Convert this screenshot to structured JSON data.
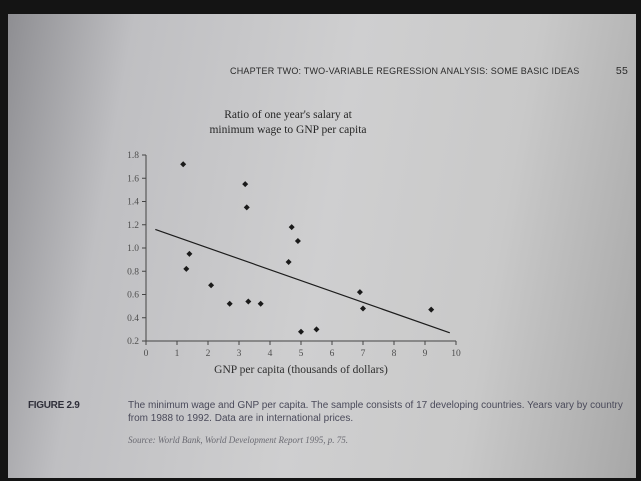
{
  "header": {
    "running_title": "CHAPTER TWO:  TWO-VARIABLE REGRESSION ANALYSIS: SOME BASIC IDEAS",
    "page_number": "55"
  },
  "chart_data": {
    "type": "scatter",
    "title": "Ratio of one year's salary at minimum wage to GNP per capita",
    "title_lines": [
      "Ratio of one year's salary at",
      "minimum wage to GNP per capita"
    ],
    "xlabel": "GNP per capita (thousands of dollars)",
    "ylabel": "",
    "xlim": [
      0,
      10
    ],
    "ylim": [
      0.2,
      1.8
    ],
    "xticks": [
      "0",
      "1",
      "2",
      "3",
      "4",
      "5",
      "6",
      "7",
      "8",
      "9",
      "10"
    ],
    "yticks": [
      "0.2",
      "0.4",
      "0.6",
      "0.8",
      "1.0",
      "1.2",
      "1.4",
      "1.6",
      "1.8"
    ],
    "points": [
      {
        "x": 1.2,
        "y": 1.72
      },
      {
        "x": 1.4,
        "y": 0.95
      },
      {
        "x": 1.3,
        "y": 0.82
      },
      {
        "x": 2.1,
        "y": 0.68
      },
      {
        "x": 2.7,
        "y": 0.52
      },
      {
        "x": 3.2,
        "y": 1.55
      },
      {
        "x": 3.25,
        "y": 1.35
      },
      {
        "x": 3.3,
        "y": 0.54
      },
      {
        "x": 3.7,
        "y": 0.52
      },
      {
        "x": 4.7,
        "y": 1.18
      },
      {
        "x": 4.9,
        "y": 1.06
      },
      {
        "x": 4.6,
        "y": 0.88
      },
      {
        "x": 5.0,
        "y": 0.28
      },
      {
        "x": 5.5,
        "y": 0.3
      },
      {
        "x": 6.9,
        "y": 0.62
      },
      {
        "x": 7.0,
        "y": 0.48
      },
      {
        "x": 9.2,
        "y": 0.47
      }
    ],
    "regression_line": {
      "x": [
        0.3,
        9.8
      ],
      "y": [
        1.16,
        0.27
      ]
    },
    "grid": false,
    "colors": {
      "points": "#1a1a1a",
      "axis": "#444444"
    }
  },
  "caption": {
    "figure_label": "FIGURE 2.9",
    "text": "The minimum wage and GNP per capita. The sample consists of 17 developing countries. Years vary by country from 1988 to 1992. Data are in international prices.",
    "source": "Source: World Bank, World Development Report 1995, p. 75."
  }
}
